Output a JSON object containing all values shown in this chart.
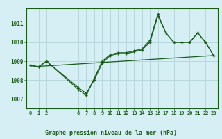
{
  "title": "Graphe pression niveau de la mer (hPa)",
  "background_color": "#d6eff5",
  "grid_color": "#b8d8de",
  "line_color": "#1a5c1a",
  "xlim": [
    -0.5,
    23.5
  ],
  "ylim": [
    1006.5,
    1011.8
  ],
  "yticks": [
    1007,
    1008,
    1009,
    1010,
    1011
  ],
  "xticks": [
    0,
    1,
    2,
    6,
    7,
    8,
    9,
    10,
    11,
    12,
    13,
    14,
    15,
    16,
    17,
    18,
    19,
    20,
    21,
    22,
    23
  ],
  "series": [
    {
      "x": [
        0,
        1,
        2,
        6,
        7,
        8,
        9,
        10,
        11,
        12,
        13,
        14,
        15,
        16,
        17,
        18,
        19,
        20,
        21,
        22,
        23
      ],
      "y": [
        1008.8,
        1008.7,
        1009.0,
        1007.6,
        1007.3,
        1008.0,
        1008.9,
        1009.3,
        1009.4,
        1009.4,
        1009.5,
        1009.6,
        1010.0,
        1011.4,
        1010.5,
        1010.0,
        1010.0,
        1010.0,
        1010.5,
        1010.0,
        1009.3
      ],
      "marker": true
    },
    {
      "x": [
        0,
        1,
        2,
        6,
        7,
        8,
        9,
        10,
        11,
        12,
        13,
        14,
        15,
        16,
        17,
        18,
        19,
        20,
        21,
        22,
        23
      ],
      "y": [
        1008.8,
        1008.7,
        1009.0,
        1007.5,
        1007.2,
        1008.1,
        1009.0,
        1009.35,
        1009.45,
        1009.45,
        1009.55,
        1009.65,
        1010.1,
        1011.5,
        1010.5,
        1010.0,
        1010.0,
        1010.0,
        1010.5,
        1010.0,
        1009.3
      ],
      "marker": true
    },
    {
      "x": [
        0,
        23
      ],
      "y": [
        1008.7,
        1009.3
      ],
      "marker": false
    }
  ],
  "figwidth": 3.2,
  "figheight": 2.0,
  "dpi": 100
}
